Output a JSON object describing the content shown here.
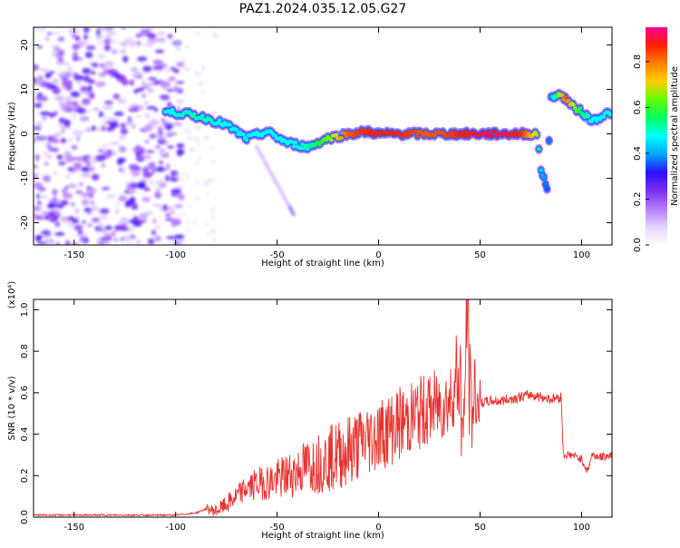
{
  "figure_title": "PAZ1.2024.035.12.05.G27",
  "colors": {
    "line": "#e8312e",
    "axis": "#000000",
    "colormap": [
      "#ffffff",
      "#e6d2ff",
      "#b47cff",
      "#7a2cf0",
      "#2a10ff",
      "#00a8ff",
      "#00ffff",
      "#00ff60",
      "#60ff00",
      "#ffd000",
      "#ff8000",
      "#ff2000",
      "#ff0090"
    ]
  },
  "chart_data": [
    {
      "type": "heatmap",
      "xlabel": "Height of straight line (km)",
      "ylabel": "Frequency (Hz)",
      "xlim": [
        -170,
        115
      ],
      "ylim": [
        -25,
        24
      ],
      "xticks": [
        -150,
        -100,
        -50,
        0,
        50,
        100
      ],
      "yticks": [
        -20,
        -10,
        0,
        10,
        20
      ],
      "colorbar": {
        "label": "Normalized spectral amplitude",
        "range": [
          0.0,
          0.95
        ],
        "ticks": [
          0.0,
          0.2,
          0.4,
          0.6,
          0.8
        ]
      },
      "ridge": {
        "x": [
          -105,
          -95,
          -85,
          -75,
          -65,
          -55,
          -45,
          -35,
          -25,
          -15,
          -5,
          0,
          10,
          20,
          30,
          40,
          50,
          60,
          70,
          78,
          80,
          83,
          85,
          88,
          92,
          96,
          100,
          105,
          110,
          115
        ],
        "y": [
          5,
          4.5,
          3.5,
          2,
          -1,
          0.5,
          -2,
          -3,
          -1,
          0,
          0.5,
          0,
          0,
          0,
          0,
          0,
          0,
          0,
          0,
          0,
          -8,
          -12,
          8,
          9,
          8,
          6,
          5,
          3,
          4,
          5
        ],
        "amplitude": [
          0.35,
          0.4,
          0.4,
          0.35,
          0.35,
          0.35,
          0.35,
          0.4,
          0.55,
          0.8,
          0.85,
          0.85,
          0.85,
          0.8,
          0.8,
          0.85,
          0.9,
          0.9,
          0.85,
          0.6,
          0.3,
          0.2,
          0.25,
          0.5,
          0.8,
          0.6,
          0.45,
          0.35,
          0.35,
          0.35
        ]
      },
      "noise_region": {
        "x": [
          -170,
          -97
        ],
        "amplitude": 0.15
      },
      "branch": {
        "x": [
          -60,
          -42
        ],
        "y": [
          -3,
          -18
        ],
        "amplitude": 0.15
      }
    },
    {
      "type": "line",
      "xlabel": "Height of straight line (km)",
      "ylabel": "SNR (10 * v/v)",
      "y_multiplier": "(x10⁴)",
      "xlim": [
        -170,
        115
      ],
      "ylim": [
        0,
        1.05
      ],
      "xticks": [
        -150,
        -100,
        -50,
        0,
        50,
        100
      ],
      "yticks": [
        0.0,
        0.2,
        0.4,
        0.6,
        0.8,
        1.0
      ],
      "series": [
        {
          "x": [
            -170,
            -150,
            -130,
            -110,
            -100,
            -90,
            -85,
            -80,
            -75,
            -70,
            -65,
            -60,
            -55,
            -50,
            -45,
            -40,
            -35,
            -30,
            -25,
            -20,
            -15,
            -10,
            -5,
            0,
            5,
            10,
            15,
            20,
            25,
            30,
            35,
            40,
            42,
            43,
            44,
            45,
            50,
            55,
            60,
            65,
            70,
            75,
            80,
            85,
            90,
            91,
            95,
            100,
            103,
            105,
            110,
            115
          ],
          "y": [
            0.01,
            0.01,
            0.01,
            0.01,
            0.01,
            0.02,
            0.04,
            0.03,
            0.06,
            0.1,
            0.14,
            0.16,
            0.17,
            0.18,
            0.2,
            0.22,
            0.25,
            0.26,
            0.28,
            0.3,
            0.32,
            0.35,
            0.38,
            0.4,
            0.42,
            0.45,
            0.47,
            0.5,
            0.52,
            0.54,
            0.56,
            0.7,
            0.3,
            0.9,
            1.03,
            0.55,
            0.55,
            0.56,
            0.56,
            0.57,
            0.58,
            0.59,
            0.58,
            0.57,
            0.58,
            0.3,
            0.3,
            0.28,
            0.22,
            0.3,
            0.29,
            0.3
          ]
        }
      ]
    }
  ]
}
